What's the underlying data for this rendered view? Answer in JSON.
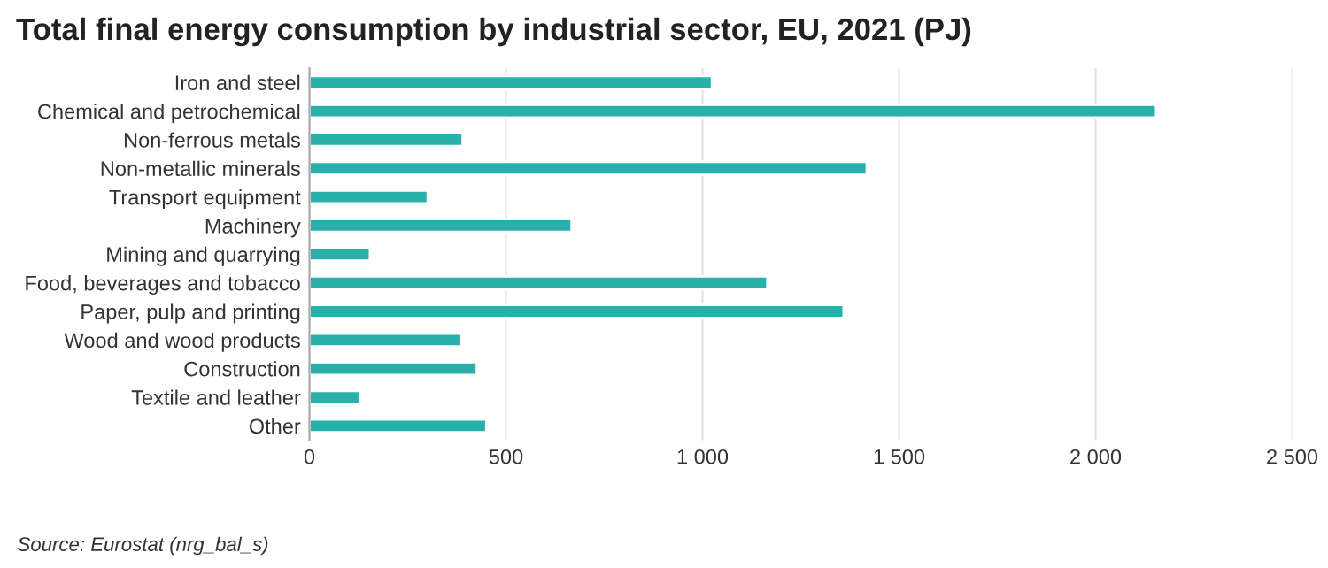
{
  "chart_data": {
    "type": "bar",
    "orientation": "horizontal",
    "title": "Total final energy consumption by industrial sector, EU, 2021 (PJ)",
    "categories": [
      "Iron and steel",
      "Chemical and petrochemical",
      "Non-ferrous metals",
      "Non-metallic minerals",
      "Transport equipment",
      "Machinery",
      "Mining and quarrying",
      "Food, beverages and tobacco",
      "Paper, pulp and printing",
      "Wood and wood products",
      "Construction",
      "Textile and leather",
      "Other"
    ],
    "values": [
      1024,
      2154,
      390,
      1418,
      301,
      667,
      154,
      1165,
      1359,
      387,
      426,
      128,
      450
    ],
    "color": "#2ab0aa",
    "xlim": [
      0,
      2500
    ],
    "xticks": [
      0,
      500,
      {
        "value": 1000,
        "label": "1 000"
      },
      {
        "value": 1500,
        "label": "1 500"
      },
      {
        "value": 2000,
        "label": "2 000"
      },
      {
        "value": 2500,
        "label": "2 500"
      }
    ],
    "grid": "x",
    "annotations": [
      "Source: Eurostat (nrg_bal_s)"
    ]
  }
}
